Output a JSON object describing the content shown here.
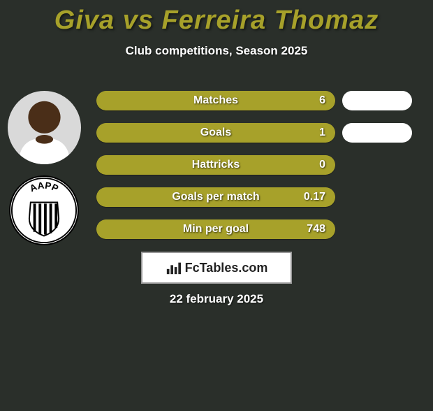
{
  "title": {
    "text": "Giva vs Ferreira Thomaz",
    "color": "#a7a12a",
    "fontsize": 38
  },
  "subtitle": {
    "text": "Club competitions, Season 2025",
    "color": "#ffffff",
    "fontsize": 17
  },
  "bars": {
    "track_width": 342,
    "track_height": 28,
    "border_radius": 14,
    "fill_color": "#a7a12a",
    "outline_color": "#a7a12a",
    "label_color": "#ffffff",
    "label_fontsize": 16,
    "value_color": "#ffffff",
    "value_fontsize": 16,
    "gap": 18,
    "items": [
      {
        "label": "Matches",
        "value": "6",
        "fill_fraction": 1.0
      },
      {
        "label": "Goals",
        "value": "1",
        "fill_fraction": 1.0
      },
      {
        "label": "Hattricks",
        "value": "0",
        "fill_fraction": 1.0
      },
      {
        "label": "Goals per match",
        "value": "0.17",
        "fill_fraction": 1.0
      },
      {
        "label": "Min per goal",
        "value": "748",
        "fill_fraction": 1.0
      }
    ]
  },
  "right_blobs": {
    "color": "#ffffff",
    "width": 100,
    "height": 28,
    "border_radius": 14,
    "count": 2
  },
  "player": {
    "avatar_bg": "#d9d9d9",
    "skin": "#4a2e18",
    "shirt": "#ffffff"
  },
  "club": {
    "badge_bg": "#ffffff",
    "badge_border": "#000000",
    "text_top": "AAPP",
    "stripes": 5
  },
  "site": {
    "icon": "bar-chart-icon",
    "text": "FcTables.com",
    "bg": "#ffffff",
    "border": "#999999",
    "text_color": "#222222"
  },
  "date": {
    "text": "22 february 2025",
    "color": "#ffffff"
  },
  "background_color": "#2a2f2a"
}
